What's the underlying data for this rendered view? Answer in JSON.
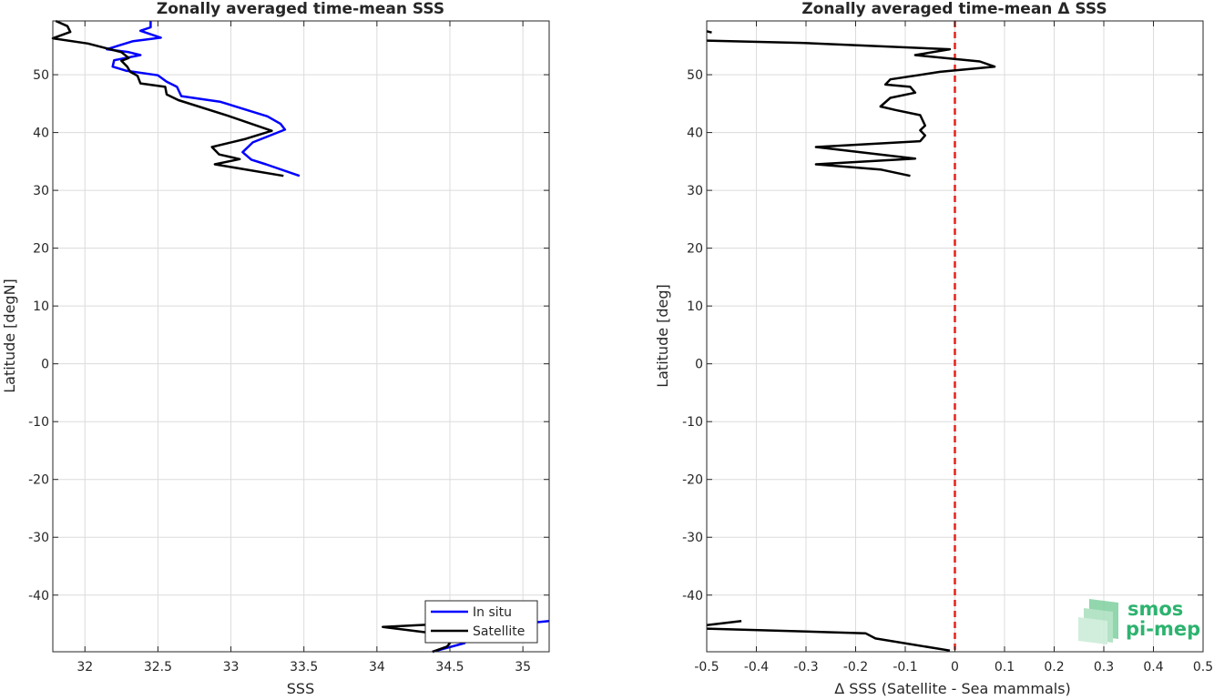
{
  "chart_data": [
    {
      "type": "line",
      "title": "Zonally averaged time-mean SSS",
      "xlabel": "SSS",
      "ylabel": "Latitude [degN]",
      "xlim": [
        31.78,
        35.18
      ],
      "ylim": [
        -49.8,
        59.3
      ],
      "xticks": [
        32,
        32.5,
        33,
        33.5,
        34,
        34.5,
        35
      ],
      "yticks": [
        -40,
        -30,
        -20,
        -10,
        0,
        10,
        20,
        30,
        40,
        50
      ],
      "grid": true,
      "legend_position": "bottom-right",
      "series": [
        {
          "name": "In situ",
          "color": "#0000ff",
          "segments": [
            [
              [
                32.45,
                59.3
              ],
              [
                32.45,
                58.2
              ],
              [
                32.38,
                57.6
              ],
              [
                32.52,
                56.4
              ],
              [
                32.33,
                55.8
              ],
              [
                32.15,
                54.4
              ],
              [
                32.3,
                53.9
              ],
              [
                32.38,
                53.4
              ],
              [
                32.2,
                52.5
              ],
              [
                32.19,
                51.4
              ],
              [
                32.28,
                50.7
              ],
              [
                32.5,
                49.9
              ],
              [
                32.56,
                48.8
              ],
              [
                32.63,
                47.9
              ],
              [
                32.66,
                46.3
              ],
              [
                32.93,
                45.3
              ],
              [
                33.25,
                42.8
              ],
              [
                33.34,
                41.5
              ],
              [
                33.37,
                40.5
              ],
              [
                33.15,
                38.3
              ],
              [
                33.08,
                36.6
              ],
              [
                33.14,
                35.3
              ],
              [
                33.24,
                34.5
              ],
              [
                33.47,
                32.5
              ]
            ],
            [
              [
                34.38,
                -49.8
              ],
              [
                34.6,
                -48.3
              ],
              [
                34.65,
                -46.9
              ],
              [
                34.85,
                -45.3
              ],
              [
                35.18,
                -44.5
              ]
            ]
          ]
        },
        {
          "name": "Satellite",
          "color": "#000000",
          "segments": [
            [
              [
                31.8,
                59.3
              ],
              [
                31.88,
                58.4
              ],
              [
                31.9,
                57.4
              ],
              [
                31.78,
                56.3
              ],
              [
                32.02,
                55.4
              ],
              [
                32.25,
                53.9
              ],
              [
                32.3,
                52.9
              ],
              [
                32.25,
                52.4
              ],
              [
                32.29,
                51.4
              ],
              [
                32.31,
                50.5
              ],
              [
                32.36,
                49.8
              ],
              [
                32.38,
                48.5
              ],
              [
                32.55,
                47.9
              ],
              [
                32.56,
                46.6
              ],
              [
                32.64,
                45.6
              ],
              [
                32.98,
                42.9
              ],
              [
                33.28,
                40.3
              ],
              [
                33.1,
                38.9
              ],
              [
                32.87,
                37.5
              ],
              [
                32.92,
                36.2
              ],
              [
                33.06,
                35.4
              ],
              [
                32.89,
                34.5
              ],
              [
                33.36,
                32.5
              ]
            ],
            [
              [
                34.52,
                -44.9
              ],
              [
                34.04,
                -45.5
              ],
              [
                34.39,
                -46.6
              ],
              [
                34.5,
                -48.3
              ],
              [
                34.48,
                -48.9
              ],
              [
                34.38,
                -49.8
              ]
            ]
          ]
        }
      ]
    },
    {
      "type": "line",
      "title": "Zonally averaged time-mean Δ SSS",
      "xlabel": "Δ SSS (Satellite - Sea mammals)",
      "ylabel": "Latitude [deg]",
      "xlim": [
        -0.5,
        0.5
      ],
      "ylim": [
        -49.8,
        59.3
      ],
      "xticks": [
        -0.5,
        -0.4,
        -0.3,
        -0.2,
        -0.1,
        0,
        0.1,
        0.2,
        0.3,
        0.4,
        0.5
      ],
      "yticks": [
        -40,
        -30,
        -20,
        -10,
        0,
        10,
        20,
        30,
        40,
        50
      ],
      "grid": true,
      "reference_line": {
        "x": 0,
        "color": "#e8221a",
        "style": "dashed"
      },
      "series": [
        {
          "color": "#000000",
          "segments": [
            [
              [
                -0.5,
                57.5
              ],
              [
                -0.49,
                57.3
              ]
            ],
            [
              [
                -0.5,
                55.9
              ],
              [
                -0.31,
                55.5
              ],
              [
                -0.01,
                54.4
              ],
              [
                -0.08,
                53.4
              ],
              [
                0.05,
                52.3
              ],
              [
                0.08,
                51.4
              ],
              [
                -0.03,
                50.5
              ],
              [
                -0.13,
                49.2
              ],
              [
                -0.14,
                48.3
              ],
              [
                -0.09,
                47.9
              ],
              [
                -0.08,
                46.9
              ],
              [
                -0.13,
                46.0
              ],
              [
                -0.15,
                44.5
              ],
              [
                -0.12,
                43.9
              ],
              [
                -0.07,
                43.0
              ],
              [
                -0.06,
                41.2
              ],
              [
                -0.07,
                40.4
              ],
              [
                -0.06,
                39.5
              ],
              [
                -0.07,
                38.5
              ],
              [
                -0.28,
                37.5
              ],
              [
                -0.19,
                36.6
              ],
              [
                -0.08,
                35.5
              ],
              [
                -0.28,
                34.5
              ],
              [
                -0.15,
                33.6
              ],
              [
                -0.09,
                32.5
              ]
            ],
            [
              [
                -0.43,
                -44.5
              ],
              [
                -0.5,
                -45.2
              ]
            ],
            [
              [
                -0.5,
                -45.8
              ],
              [
                -0.18,
                -46.6
              ],
              [
                -0.16,
                -47.5
              ],
              [
                -0.01,
                -49.6
              ]
            ]
          ]
        }
      ]
    }
  ],
  "logo": {
    "line1": "smos",
    "line2": "pi-mep"
  }
}
